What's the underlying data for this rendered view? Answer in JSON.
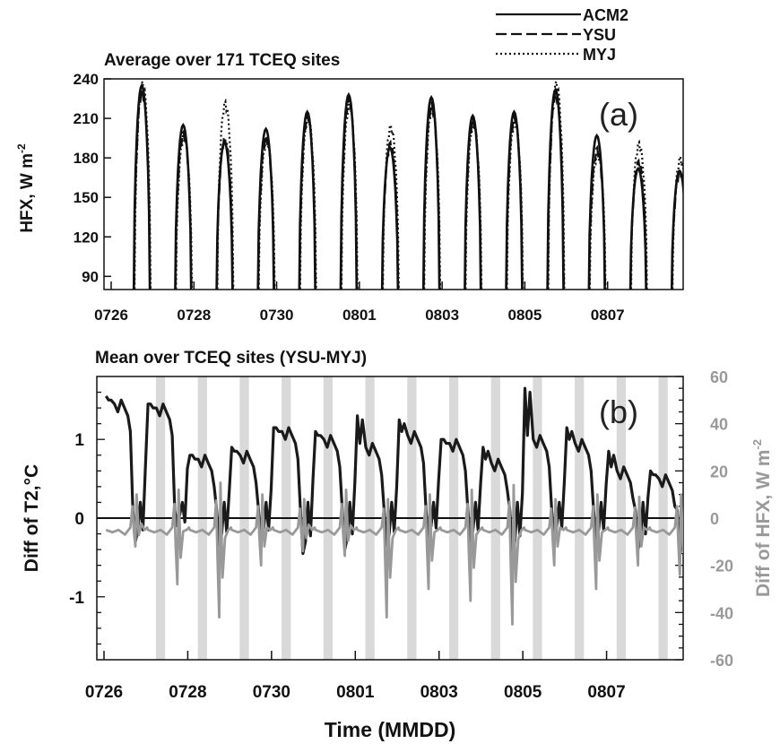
{
  "chart_data": [
    {
      "type": "line",
      "panel_label": "(a)",
      "title": "Average over 171 TCEQ sites",
      "ylabel": "HFX, W m",
      "ylabel_superscript": "-2",
      "ylim": [
        80,
        240
      ],
      "yticks": [
        90,
        120,
        150,
        180,
        210,
        240
      ],
      "xlim": [
        0,
        14.0
      ],
      "xticks": [
        0,
        2,
        4,
        6,
        8,
        10,
        12
      ],
      "xticklabels": [
        "0726",
        "0728",
        "0730",
        "0801",
        "0803",
        "0805",
        "0807"
      ],
      "daytime_center_day_offset": 0.75,
      "daytime_half_width_days": 0.2,
      "legend": [
        "ACM2",
        "YSU",
        "MYJ"
      ],
      "series": [
        {
          "name": "ACM2",
          "style": "solid",
          "daily_peaks": [
            235,
            205,
            192,
            202,
            215,
            228,
            188,
            226,
            212,
            215,
            232,
            197,
            172,
            170
          ]
        },
        {
          "name": "YSU",
          "style": "dashed",
          "daily_peaks": [
            232,
            200,
            196,
            197,
            213,
            226,
            192,
            222,
            210,
            212,
            230,
            188,
            178,
            172
          ]
        },
        {
          "name": "MYJ",
          "style": "dotted",
          "daily_peaks": [
            238,
            198,
            223,
            195,
            212,
            222,
            205,
            220,
            208,
            210,
            238,
            185,
            192,
            181
          ]
        }
      ]
    },
    {
      "type": "line",
      "panel_label": "(b)",
      "title": "Mean over TCEQ sites (YSU-MYJ)",
      "xlabel": "Time (MMDD)",
      "ylabel": "Diff of T2,°C",
      "y2label": "Diff of HFX, W m",
      "y2label_superscript": "-2",
      "ylim": [
        -1.8,
        1.8
      ],
      "yticks": [
        -1,
        0,
        1
      ],
      "y2lim": [
        -60,
        60
      ],
      "y2ticks": [
        -60,
        -40,
        -20,
        0,
        20,
        40,
        60
      ],
      "xlim": [
        0,
        14.0
      ],
      "xticks": [
        0,
        2,
        4,
        6,
        8,
        10,
        12
      ],
      "xticklabels": [
        "0726",
        "0728",
        "0730",
        "0801",
        "0803",
        "0805",
        "0807"
      ],
      "shaded_bands_center_day_offset": 1.4,
      "shaded_band_width_days": 0.22,
      "series": [
        {
          "name": "Diff of T2",
          "axis": "left",
          "color": "#1a1a1a",
          "daily_shape": {
            "night_plateau": [
              1.45,
              1.4,
              0.75,
              0.8,
              1.1,
              1.0,
              0.9,
              1.05,
              0.95,
              0.7,
              1.0,
              0.95,
              0.6,
              0.5
            ],
            "night_peak": [
              1.55,
              1.45,
              0.8,
              0.9,
              1.15,
              1.1,
              1.3,
              1.25,
              1.0,
              0.9,
              1.65,
              1.15,
              0.85,
              0.6
            ],
            "day_min": [
              -0.3,
              -0.1,
              -0.35,
              -0.3,
              -0.45,
              -0.4,
              -0.35,
              -0.25,
              -0.3,
              -0.45,
              -0.25,
              -0.3,
              -0.4,
              -0.45
            ]
          }
        },
        {
          "name": "Diff of HFX",
          "axis": "right",
          "color": "#999999",
          "daily_shape": {
            "night_level": -5,
            "day_min": [
              -12,
              -28,
              -42,
              -20,
              -14,
              -16,
              -42,
              -30,
              -35,
              -45,
              -20,
              -30,
              -20,
              -24
            ],
            "day_max": [
              10,
              12,
              15,
              10,
              8,
              12,
              8,
              10,
              12,
              14,
              8,
              10,
              9,
              10
            ]
          }
        }
      ]
    }
  ]
}
